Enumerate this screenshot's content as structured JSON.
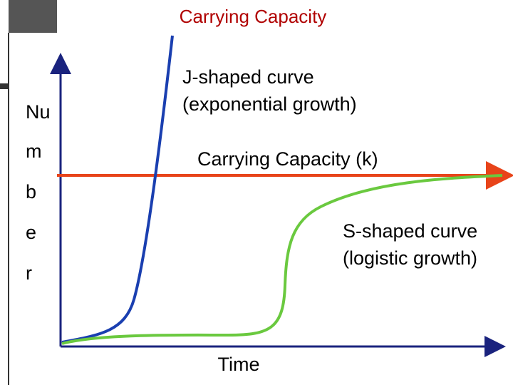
{
  "title": "Carrying Capacity",
  "y_axis_label": [
    "Nu",
    "m",
    "b",
    "e",
    "r"
  ],
  "x_axis_label": "Time",
  "j_curve": {
    "line1": "J-shaped curve",
    "line2": "(exponential growth)"
  },
  "carrying_capacity": "Carrying Capacity (k)",
  "s_curve": {
    "line1": "S-shaped curve",
    "line2": "(logistic growth)"
  }
}
